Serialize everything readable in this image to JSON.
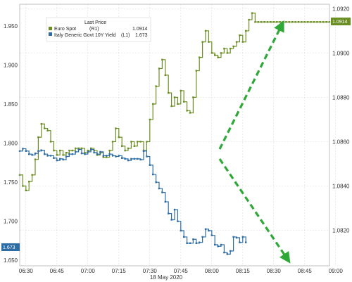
{
  "chart_data": {
    "type": "line",
    "xlabel": "18 May 2020",
    "x_ticks": [
      "06:30",
      "06:45",
      "07:00",
      "07:15",
      "07:30",
      "07:45",
      "08:00",
      "08:15",
      "08:30",
      "08:45",
      "09:00"
    ],
    "right_axis": {
      "ticks": [
        "1.0920",
        "1.0900",
        "1.0880",
        "1.0860",
        "1.0840",
        "1.0820"
      ],
      "tick_values": [
        1.092,
        1.09,
        1.088,
        1.086,
        1.084,
        1.082
      ],
      "ylim": [
        1.0804,
        1.0922
      ]
    },
    "left_axis": {
      "ticks": [
        "1.950",
        "1.900",
        "1.850",
        "1.800",
        "1.750",
        "1.700",
        "1.650"
      ],
      "tick_values": [
        1.95,
        1.9,
        1.85,
        1.8,
        1.75,
        1.7,
        1.65
      ],
      "ylim": [
        1.643,
        1.978
      ]
    },
    "legend": {
      "title": "Last Price",
      "entries": [
        {
          "name": "Euro Spot",
          "axis": "(R1)",
          "value": "1.0914",
          "color": "#6b8e23"
        },
        {
          "name": "Italy Generic Govt 10Y Yield",
          "axis": "(L1)",
          "value": "1.673",
          "color": "#2e6da4"
        }
      ]
    },
    "badges": {
      "euro": "1.0914",
      "italy": "1.673"
    },
    "series": [
      {
        "name": "Euro Spot",
        "axis": "right",
        "color": "#6b8e23",
        "x": [
          0,
          2,
          4,
          6,
          8,
          10,
          12,
          14,
          16,
          18,
          20,
          22,
          24,
          26,
          28,
          30,
          32,
          34,
          36,
          38,
          40,
          42,
          44,
          46,
          48,
          50,
          52,
          54,
          56,
          58,
          60,
          62,
          64,
          66,
          68,
          70,
          72,
          74,
          76,
          78,
          80,
          82,
          84,
          86,
          88,
          90,
          92,
          94,
          96,
          98,
          100,
          102,
          104,
          106,
          108,
          110,
          112,
          114,
          116,
          118,
          120,
          122,
          124,
          126,
          128,
          130,
          132,
          134,
          136,
          138,
          140,
          142,
          144,
          146,
          148,
          150,
          152,
          154,
          156,
          158,
          160,
          162,
          164,
          166,
          168,
          170,
          172,
          174,
          176,
          178,
          180,
          182,
          184,
          186,
          188,
          190,
          192,
          194,
          196,
          198,
          200
        ],
        "values": [
          1.0845,
          1.084,
          1.0838,
          1.0842,
          1.0845,
          1.0852,
          1.0862,
          1.0868,
          1.0866,
          1.0865,
          1.086,
          1.0856,
          1.0854,
          1.0856,
          1.0854,
          1.0855,
          1.0856,
          1.0856,
          1.0857,
          1.0857,
          1.0857,
          1.0855,
          1.0856,
          1.0857,
          1.0856,
          1.0854,
          1.0855,
          1.0853,
          1.0853,
          1.0856,
          1.086,
          1.0866,
          1.0862,
          1.0858,
          1.0856,
          1.0857,
          1.086,
          1.0858,
          1.086,
          1.086,
          1.0856,
          1.086,
          1.087,
          1.0877,
          1.0885,
          1.0893,
          1.0897,
          1.089,
          1.0882,
          1.0876,
          1.088,
          1.0877,
          1.0883,
          1.0878,
          1.0874,
          1.0873,
          1.088,
          1.0892,
          1.0898,
          1.0905,
          1.091,
          1.0905,
          1.09,
          1.0899,
          1.0898,
          1.09,
          1.0902,
          1.09,
          1.0902,
          1.0903,
          1.0905,
          1.0908,
          1.0905,
          1.091,
          1.0915,
          1.0918,
          1.0914,
          1.0914,
          1.0914,
          1.0914,
          1.0914,
          1.0914,
          1.0914,
          1.0914,
          1.0914,
          1.0914,
          1.0914,
          1.0914,
          1.0914,
          1.0914,
          1.0914,
          1.0914,
          1.0914,
          1.0914,
          1.0914,
          1.0914,
          1.0914,
          1.0914,
          1.0914,
          1.0914,
          1.0914
        ]
      },
      {
        "name": "Italy Generic Govt 10Y Yield",
        "axis": "left",
        "color": "#2e6da4",
        "x": [
          0,
          2,
          4,
          6,
          8,
          10,
          12,
          14,
          16,
          18,
          20,
          22,
          24,
          26,
          28,
          30,
          32,
          34,
          36,
          38,
          40,
          42,
          44,
          46,
          48,
          50,
          52,
          54,
          56,
          58,
          60,
          62,
          64,
          66,
          68,
          70,
          72,
          74,
          76,
          78,
          80,
          82,
          84,
          86,
          88,
          90,
          92,
          94,
          96,
          98,
          100,
          102,
          104,
          106,
          108,
          110,
          112,
          114,
          116,
          118,
          120,
          122,
          124,
          126,
          128,
          130,
          132,
          134,
          136,
          138,
          140,
          142,
          144,
          146
        ],
        "values": [
          1.79,
          1.793,
          1.79,
          1.786,
          1.785,
          1.787,
          1.79,
          1.791,
          1.786,
          1.784,
          1.784,
          1.781,
          1.778,
          1.78,
          1.779,
          1.783,
          1.786,
          1.786,
          1.789,
          1.792,
          1.787,
          1.786,
          1.789,
          1.792,
          1.788,
          1.786,
          1.789,
          1.784,
          1.784,
          1.786,
          1.784,
          1.783,
          1.784,
          1.781,
          1.78,
          1.778,
          1.78,
          1.78,
          1.78,
          1.779,
          1.79,
          1.783,
          1.772,
          1.76,
          1.75,
          1.742,
          1.737,
          1.725,
          1.71,
          1.702,
          1.715,
          1.7,
          1.688,
          1.68,
          1.672,
          1.672,
          1.677,
          1.672,
          1.673,
          1.68,
          1.69,
          1.688,
          1.682,
          1.67,
          1.668,
          1.67,
          1.66,
          1.658,
          1.662,
          1.68,
          1.679,
          1.673,
          1.68,
          1.673
        ]
      }
    ],
    "annotations": [
      {
        "type": "arrow",
        "direction": "up",
        "color": "#2ea836"
      },
      {
        "type": "arrow",
        "direction": "down",
        "color": "#2ea836"
      }
    ]
  }
}
